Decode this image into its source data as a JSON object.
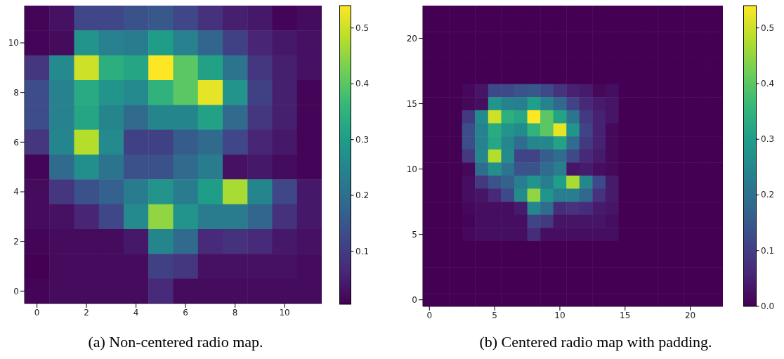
{
  "chart_data": [
    {
      "type": "heatmap",
      "title": "(a) Non-centered radio map.",
      "categories": [
        "0",
        null,
        "2",
        null,
        "4",
        null,
        "6",
        null,
        "8",
        null,
        "10",
        null
      ],
      "y_categories": [
        null,
        "10",
        null,
        "8",
        null,
        "6",
        null,
        "4",
        null,
        "2",
        null,
        "0"
      ],
      "clim": [
        0.005,
        0.54
      ],
      "cticks": [
        0.1,
        0.2,
        0.3,
        0.4,
        0.5
      ],
      "cells": [
        [
          0.01,
          0.03,
          0.12,
          0.12,
          0.14,
          0.15,
          0.12,
          0.08,
          0.05,
          0.04,
          0.01,
          0.02
        ],
        [
          0.01,
          0.02,
          0.28,
          0.24,
          0.23,
          0.3,
          0.24,
          0.18,
          0.11,
          0.06,
          0.04,
          0.03
        ],
        [
          0.09,
          0.26,
          0.5,
          0.34,
          0.32,
          0.54,
          0.4,
          0.31,
          0.21,
          0.09,
          0.05,
          0.03
        ],
        [
          0.13,
          0.24,
          0.33,
          0.28,
          0.26,
          0.35,
          0.4,
          0.52,
          0.28,
          0.11,
          0.05,
          0.01
        ],
        [
          0.13,
          0.24,
          0.32,
          0.25,
          0.19,
          0.25,
          0.25,
          0.31,
          0.19,
          0.09,
          0.05,
          0.01
        ],
        [
          0.09,
          0.25,
          0.48,
          0.26,
          0.11,
          0.11,
          0.16,
          0.19,
          0.12,
          0.06,
          0.04,
          0.01
        ],
        [
          0.01,
          0.19,
          0.27,
          0.21,
          0.14,
          0.14,
          0.19,
          0.23,
          0.03,
          0.04,
          0.02,
          0.01
        ],
        [
          0.02,
          0.09,
          0.14,
          0.17,
          0.23,
          0.28,
          0.23,
          0.3,
          0.47,
          0.25,
          0.12,
          0.04
        ],
        [
          0.02,
          0.03,
          0.06,
          0.12,
          0.26,
          0.45,
          0.28,
          0.23,
          0.23,
          0.18,
          0.08,
          0.04
        ],
        [
          0.01,
          0.02,
          0.02,
          0.02,
          0.04,
          0.25,
          0.19,
          0.07,
          0.08,
          0.07,
          0.04,
          0.03
        ],
        [
          0.005,
          0.02,
          0.02,
          0.02,
          0.02,
          0.11,
          0.09,
          0.03,
          0.03,
          0.03,
          0.03,
          0.02
        ],
        [
          0.01,
          0.02,
          0.02,
          0.02,
          0.02,
          0.07,
          0.02,
          0.02,
          0.02,
          0.02,
          0.02,
          0.02
        ]
      ]
    },
    {
      "type": "heatmap",
      "title": "(b) Centered radio map with padding.",
      "categories": [
        "0",
        null,
        null,
        null,
        null,
        "5",
        null,
        null,
        null,
        null,
        "10",
        null,
        null,
        null,
        null,
        "15",
        null,
        null,
        null,
        null,
        "20",
        null,
        null
      ],
      "y_categories": [
        null,
        null,
        "20",
        null,
        null,
        null,
        null,
        "15",
        null,
        null,
        null,
        null,
        "10",
        null,
        null,
        null,
        null,
        "5",
        null,
        null,
        null,
        null,
        "0"
      ],
      "clim": [
        0,
        0.54
      ],
      "cticks": [
        {
          "value": 0,
          "label": "0.0"
        },
        0.1,
        0.2,
        0.3,
        0.4,
        0.5
      ],
      "cells": [
        [
          0,
          0,
          0,
          0,
          0,
          0,
          0,
          0,
          0,
          0,
          0,
          0,
          0,
          0,
          0,
          0,
          0,
          0,
          0,
          0,
          0,
          0,
          0
        ],
        [
          0,
          0,
          0,
          0,
          0,
          0,
          0,
          0,
          0,
          0,
          0,
          0,
          0,
          0,
          0,
          0,
          0,
          0,
          0,
          0,
          0,
          0,
          0
        ],
        [
          0,
          0,
          0,
          0,
          0,
          0,
          0,
          0,
          0,
          0,
          0,
          0,
          0,
          0,
          0,
          0,
          0,
          0,
          0,
          0,
          0,
          0,
          0
        ],
        [
          0,
          0,
          0,
          0,
          0,
          0,
          0,
          0,
          0,
          0,
          0,
          0,
          0,
          0,
          0,
          0,
          0,
          0,
          0,
          0,
          0,
          0,
          0
        ],
        [
          0,
          0,
          0,
          0,
          0,
          0,
          0,
          0,
          0,
          0,
          0,
          0,
          0,
          0,
          0,
          0,
          0,
          0,
          0,
          0,
          0,
          0,
          0
        ],
        [
          0,
          0,
          0,
          0,
          0,
          0,
          0,
          0,
          0,
          0,
          0,
          0,
          0,
          0,
          0,
          0,
          0,
          0,
          0,
          0,
          0,
          0,
          0
        ],
        [
          0,
          0,
          0,
          0.01,
          0.03,
          0.12,
          0.12,
          0.14,
          0.15,
          0.12,
          0.08,
          0.05,
          0.04,
          0.01,
          0.02,
          0,
          0,
          0,
          0,
          0,
          0,
          0,
          0
        ],
        [
          0,
          0,
          0,
          0.01,
          0.02,
          0.28,
          0.24,
          0.23,
          0.3,
          0.24,
          0.18,
          0.11,
          0.06,
          0.04,
          0.03,
          0,
          0,
          0,
          0,
          0,
          0,
          0,
          0
        ],
        [
          0,
          0,
          0,
          0.09,
          0.26,
          0.5,
          0.34,
          0.32,
          0.54,
          0.4,
          0.31,
          0.21,
          0.09,
          0.05,
          0.03,
          0,
          0,
          0,
          0,
          0,
          0,
          0,
          0
        ],
        [
          0,
          0,
          0,
          0.13,
          0.24,
          0.33,
          0.28,
          0.26,
          0.35,
          0.4,
          0.52,
          0.28,
          0.11,
          0.05,
          0.01,
          0,
          0,
          0,
          0,
          0,
          0,
          0,
          0
        ],
        [
          0,
          0,
          0,
          0.13,
          0.24,
          0.32,
          0.25,
          0.19,
          0.25,
          0.25,
          0.31,
          0.19,
          0.09,
          0.05,
          0.01,
          0,
          0,
          0,
          0,
          0,
          0,
          0,
          0
        ],
        [
          0,
          0,
          0,
          0.09,
          0.25,
          0.48,
          0.26,
          0.11,
          0.11,
          0.16,
          0.19,
          0.12,
          0.06,
          0.04,
          0.01,
          0,
          0,
          0,
          0,
          0,
          0,
          0,
          0
        ],
        [
          0,
          0,
          0,
          0.01,
          0.19,
          0.27,
          0.21,
          0.14,
          0.14,
          0.19,
          0.23,
          0.03,
          0.04,
          0.02,
          0.01,
          0,
          0,
          0,
          0,
          0,
          0,
          0,
          0
        ],
        [
          0,
          0,
          0,
          0.02,
          0.09,
          0.14,
          0.17,
          0.23,
          0.28,
          0.23,
          0.3,
          0.47,
          0.25,
          0.12,
          0.04,
          0,
          0,
          0,
          0,
          0,
          0,
          0,
          0
        ],
        [
          0,
          0,
          0,
          0.02,
          0.03,
          0.06,
          0.12,
          0.26,
          0.45,
          0.28,
          0.23,
          0.23,
          0.18,
          0.08,
          0.04,
          0,
          0,
          0,
          0,
          0,
          0,
          0,
          0
        ],
        [
          0,
          0,
          0,
          0.01,
          0.02,
          0.02,
          0.02,
          0.04,
          0.25,
          0.19,
          0.07,
          0.08,
          0.07,
          0.04,
          0.03,
          0,
          0,
          0,
          0,
          0,
          0,
          0,
          0
        ],
        [
          0,
          0,
          0,
          0.005,
          0.02,
          0.02,
          0.02,
          0.02,
          0.11,
          0.09,
          0.03,
          0.03,
          0.03,
          0.03,
          0.02,
          0,
          0,
          0,
          0,
          0,
          0,
          0,
          0
        ],
        [
          0,
          0,
          0,
          0.01,
          0.02,
          0.02,
          0.02,
          0.02,
          0.07,
          0.02,
          0.02,
          0.02,
          0.02,
          0.02,
          0.02,
          0,
          0,
          0,
          0,
          0,
          0,
          0,
          0
        ],
        [
          0,
          0,
          0,
          0,
          0,
          0,
          0,
          0,
          0,
          0,
          0,
          0,
          0,
          0,
          0,
          0,
          0,
          0,
          0,
          0,
          0,
          0,
          0
        ],
        [
          0,
          0,
          0,
          0,
          0,
          0,
          0,
          0,
          0,
          0,
          0,
          0,
          0,
          0,
          0,
          0,
          0,
          0,
          0,
          0,
          0,
          0,
          0
        ],
        [
          0,
          0,
          0,
          0,
          0,
          0,
          0,
          0,
          0,
          0,
          0,
          0,
          0,
          0,
          0,
          0,
          0,
          0,
          0,
          0,
          0,
          0,
          0
        ],
        [
          0,
          0,
          0,
          0,
          0,
          0,
          0,
          0,
          0,
          0,
          0,
          0,
          0,
          0,
          0,
          0,
          0,
          0,
          0,
          0,
          0,
          0,
          0
        ],
        [
          0,
          0,
          0,
          0,
          0,
          0,
          0,
          0,
          0,
          0,
          0,
          0,
          0,
          0,
          0,
          0,
          0,
          0,
          0,
          0,
          0,
          0,
          0
        ]
      ]
    }
  ]
}
